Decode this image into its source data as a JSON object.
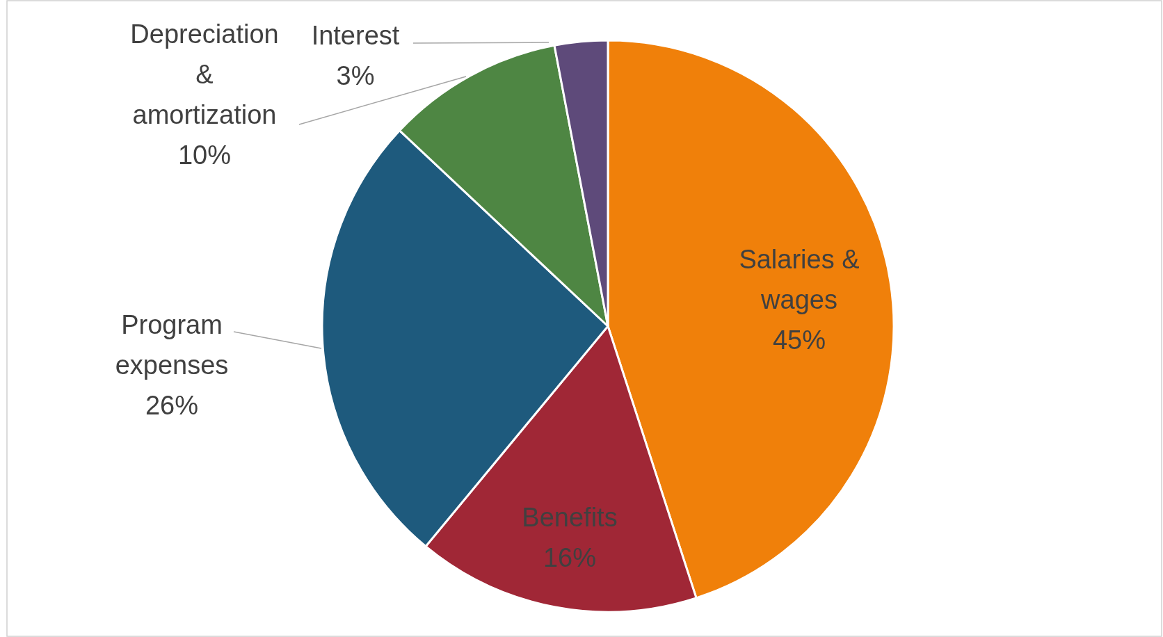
{
  "chart_data": {
    "type": "pie",
    "categories": [
      "Salaries & wages",
      "Benefits",
      "Program expenses",
      "Depreciation & amortization",
      "Interest"
    ],
    "values": [
      45,
      16,
      26,
      10,
      3
    ],
    "colors": [
      "#f0800a",
      "#a02736",
      "#1e5a7d",
      "#4e8643",
      "#5e4a7a"
    ],
    "value_labels": [
      "45%",
      "16%",
      "26%",
      "10%",
      "3%"
    ]
  }
}
